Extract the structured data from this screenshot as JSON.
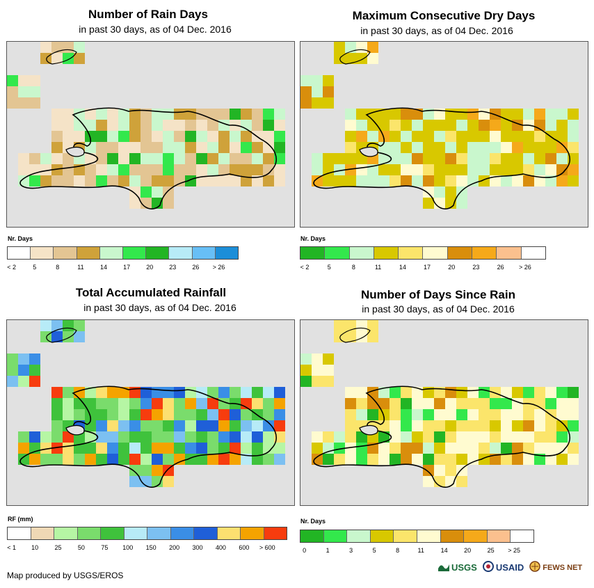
{
  "panels": [
    {
      "title": "Number of Rain Days",
      "subtitle": "in past 30 days, as of 04 Dec. 2016",
      "legend_title": "Nr. Days",
      "legend_colors": [
        "#ffffff",
        "#f5e3c7",
        "#e3c593",
        "#cfa23a",
        "#c9f7cd",
        "#33e84c",
        "#22b524",
        "#b7ebf7",
        "#67bff6",
        "#1c8ed8"
      ],
      "legend_labels": [
        "< 2",
        "5",
        "8",
        "11",
        "14",
        "17",
        "20",
        "23",
        "26",
        "> 26"
      ]
    },
    {
      "title": "Maximum Consecutive Dry Days",
      "subtitle": "in past 30 days, as of 04 Dec. 2016",
      "legend_title": "Nr. Days",
      "legend_colors": [
        "#22b524",
        "#33e84c",
        "#c9f7cd",
        "#d8c800",
        "#fbe56b",
        "#fffbd0",
        "#d98e0c",
        "#f5a91a",
        "#fbc08e",
        "#ffffff"
      ],
      "legend_labels": [
        "< 2",
        "5",
        "8",
        "11",
        "14",
        "17",
        "20",
        "23",
        "26",
        "> 26"
      ]
    },
    {
      "title": "Total Accumulated Rainfall",
      "subtitle": "in past 30 days, as of 04 Dec. 2016",
      "legend_title": "RF (mm)",
      "legend_colors": [
        "#ffffff",
        "#efd8b5",
        "#b6f6a4",
        "#7adc6c",
        "#3fc23c",
        "#b7ebf7",
        "#7cc0f1",
        "#3a8ee6",
        "#1f5fd8",
        "#fce070",
        "#f5a300",
        "#f73c0e"
      ],
      "legend_labels": [
        "< 1",
        "10",
        "25",
        "50",
        "75",
        "100",
        "150",
        "200",
        "300",
        "400",
        "600",
        "> 600"
      ]
    },
    {
      "title": "Number of Days Since Rain",
      "subtitle": "in past 30 days, as of 04 Dec. 2016",
      "legend_title": "Nr. Days",
      "legend_colors": [
        "#22b524",
        "#33e84c",
        "#c9f7cd",
        "#d8c800",
        "#fbe56b",
        "#fffbd0",
        "#d98e0c",
        "#f5a91a",
        "#fbc08e",
        "#ffffff"
      ],
      "legend_labels": [
        "0",
        "1",
        "3",
        "5",
        "8",
        "11",
        "14",
        "20",
        "25",
        "> 25"
      ]
    }
  ],
  "credit": "Map produced by USGS/EROS",
  "logos": [
    "USGS",
    "USAID",
    "FEWS NET"
  ]
}
